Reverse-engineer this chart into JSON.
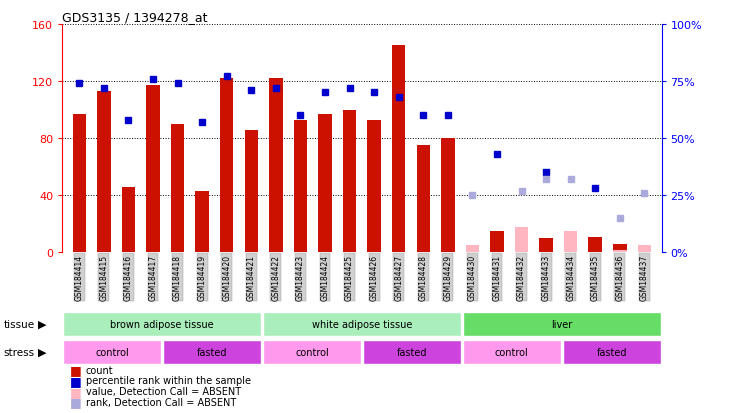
{
  "title": "GDS3135 / 1394278_at",
  "samples": [
    "GSM184414",
    "GSM184415",
    "GSM184416",
    "GSM184417",
    "GSM184418",
    "GSM184419",
    "GSM184420",
    "GSM184421",
    "GSM184422",
    "GSM184423",
    "GSM184424",
    "GSM184425",
    "GSM184426",
    "GSM184427",
    "GSM184428",
    "GSM184429",
    "GSM184430",
    "GSM184431",
    "GSM184432",
    "GSM184433",
    "GSM184434",
    "GSM184435",
    "GSM184436",
    "GSM184437"
  ],
  "count_values": [
    97,
    113,
    46,
    117,
    90,
    43,
    122,
    86,
    122,
    93,
    97,
    100,
    93,
    145,
    75,
    80,
    null,
    15,
    null,
    10,
    12,
    11,
    6,
    null
  ],
  "count_absent": [
    null,
    null,
    null,
    null,
    null,
    null,
    null,
    null,
    null,
    null,
    null,
    null,
    null,
    null,
    null,
    null,
    5,
    null,
    18,
    null,
    15,
    null,
    2,
    5
  ],
  "rank_present": [
    74,
    72,
    58,
    76,
    74,
    57,
    77,
    71,
    72,
    60,
    70,
    72,
    70,
    68,
    60,
    60,
    null,
    43,
    null,
    35,
    null,
    28,
    null,
    null
  ],
  "rank_absent": [
    null,
    null,
    null,
    null,
    null,
    null,
    null,
    null,
    null,
    null,
    null,
    null,
    null,
    null,
    null,
    null,
    25,
    null,
    27,
    32,
    32,
    null,
    15,
    26
  ],
  "left_ylim": [
    0,
    160
  ],
  "right_ylim": [
    0,
    100
  ],
  "left_yticks": [
    0,
    40,
    80,
    120,
    160
  ],
  "right_yticks": [
    0,
    25,
    50,
    75,
    100
  ],
  "right_yticklabels": [
    "0%",
    "25%",
    "50%",
    "75%",
    "100%"
  ],
  "bar_color": "#CC1100",
  "absent_bar_color": "#FFB6C1",
  "rank_color": "#0000CC",
  "absent_rank_color": "#AAAADD",
  "tissue_groups": [
    {
      "label": "brown adipose tissue",
      "start": 0,
      "end": 8,
      "color": "#AAEEBB"
    },
    {
      "label": "white adipose tissue",
      "start": 8,
      "end": 16,
      "color": "#AAEEBB"
    },
    {
      "label": "liver",
      "start": 16,
      "end": 24,
      "color": "#66DD66"
    }
  ],
  "stress_groups": [
    {
      "label": "control",
      "start": 0,
      "end": 4,
      "color": "#FF99EE"
    },
    {
      "label": "fasted",
      "start": 4,
      "end": 8,
      "color": "#CC44DD"
    },
    {
      "label": "control",
      "start": 8,
      "end": 12,
      "color": "#FF99EE"
    },
    {
      "label": "fasted",
      "start": 12,
      "end": 16,
      "color": "#CC44DD"
    },
    {
      "label": "control",
      "start": 16,
      "end": 20,
      "color": "#FF99EE"
    },
    {
      "label": "fasted",
      "start": 20,
      "end": 24,
      "color": "#CC44DD"
    }
  ]
}
